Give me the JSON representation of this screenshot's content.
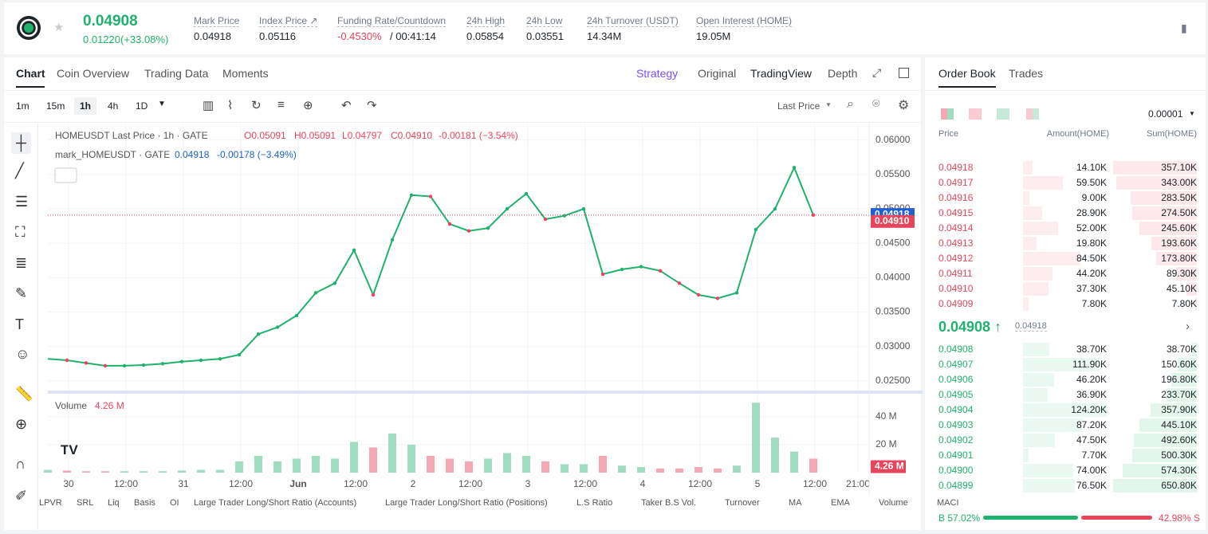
{
  "header": {
    "price": "0.04908",
    "change": "0.01220(+33.08%)",
    "stats": [
      {
        "label": "Mark Price",
        "value": "0.04918"
      },
      {
        "label": "Index Price ↗",
        "value": "0.05116"
      },
      {
        "label": "Funding Rate/Countdown",
        "value": "-0.4530%",
        "extra": "/ 00:41:14"
      },
      {
        "label": "24h High",
        "value": "0.05854"
      },
      {
        "label": "24h Low",
        "value": "0.03551"
      },
      {
        "label": "24h Turnover (USDT)",
        "value": "14.34M"
      },
      {
        "label": "Open Interest (HOME)",
        "value": "19.05M"
      }
    ]
  },
  "chart_tabs": [
    "Chart",
    "Coin Overview",
    "Trading Data",
    "Moments"
  ],
  "chart_views": [
    "Strategy",
    "Original",
    "TradingView",
    "Depth"
  ],
  "intervals": [
    "1m",
    "15m",
    "1h",
    "4h",
    "1D"
  ],
  "price_source": "Last Price",
  "indicators": [
    "LPVR",
    "SRL",
    "Liq",
    "Basis",
    "OI",
    "Large Trader Long/Short Ratio (Accounts)",
    "Large Trader Long/Short Ratio (Positions)",
    "L.S Ratio",
    "Taker B.S Vol.",
    "Turnover",
    "MA",
    "EMA",
    "Volume",
    "MACI"
  ],
  "chart_data": {
    "type": "line",
    "title": "HOMEUSDT Last Price · 1h · GATE",
    "ohlc": [
      "O0.05091",
      "H0.05091",
      "L0.04797",
      "C0.04910",
      "-0.00181 (−3.54%)"
    ],
    "mark_title": "mark_HOMEUSDT · GATE",
    "mark_values": [
      "0.04918",
      "-0.00178 (−3.49%)"
    ],
    "xticks": [
      "30",
      "12:00",
      "31",
      "12:00",
      "Jun",
      "12:00",
      "2",
      "12:00",
      "3",
      "12:00",
      "4",
      "12:00",
      "5",
      "12:00",
      "21:00"
    ],
    "series": [
      {
        "name": "Last Price",
        "color": "#20b26c",
        "values": [
          0.0282,
          0.028,
          0.0276,
          0.0272,
          0.0272,
          0.0273,
          0.0275,
          0.0278,
          0.028,
          0.0282,
          0.0288,
          0.0318,
          0.0328,
          0.0345,
          0.0378,
          0.0392,
          0.044,
          0.0375,
          0.0455,
          0.052,
          0.0518,
          0.0478,
          0.0468,
          0.0472,
          0.05,
          0.0522,
          0.0485,
          0.049,
          0.05,
          0.0405,
          0.0412,
          0.0416,
          0.041,
          0.0392,
          0.0375,
          0.037,
          0.0378,
          0.047,
          0.05,
          0.056,
          0.0491
        ]
      }
    ],
    "ylim": [
      0.0236,
      0.0624
    ],
    "yticks": [
      {
        "value": 0.025,
        "label": "0.02500"
      },
      {
        "value": 0.03,
        "label": "0.03000"
      },
      {
        "value": 0.035,
        "label": "0.03500"
      },
      {
        "value": 0.04,
        "label": "0.04000"
      },
      {
        "value": 0.045,
        "label": "0.04500"
      },
      {
        "value": 0.05,
        "label": "0.05000"
      },
      {
        "value": 0.055,
        "label": "0.05500"
      },
      {
        "value": 0.06,
        "label": "0.06000"
      }
    ],
    "mark_marker": {
      "value": 0.04918,
      "label": "0.04918"
    },
    "last_marker": {
      "value": 0.0491,
      "label": "0.04910"
    },
    "volume": {
      "title": "Volume",
      "values": [
        2,
        1.5,
        1,
        1,
        1,
        1,
        1,
        1.5,
        2,
        2,
        8,
        12,
        8,
        10,
        12,
        10,
        22,
        18,
        28,
        20,
        12,
        10,
        8,
        10,
        14,
        12,
        8,
        6,
        6,
        12,
        5,
        4,
        3,
        3,
        4,
        3,
        5,
        50,
        25,
        15,
        10
      ],
      "ylim": [
        0,
        53
      ],
      "yticks": [
        {
          "value": 20,
          "label": "20 M"
        },
        {
          "value": 40,
          "label": "40 M"
        }
      ],
      "marker": {
        "value": 4.26,
        "label": "4.26 M"
      }
    }
  },
  "order_book": {
    "tabs": [
      "Order Book",
      "Trades"
    ],
    "precision": "0.00001",
    "columns": [
      "Price",
      "Amount(HOME)",
      "Sum(HOME)"
    ],
    "asks": [
      [
        "0.04918",
        "14.10K",
        "357.10K"
      ],
      [
        "0.04917",
        "59.50K",
        "343.00K"
      ],
      [
        "0.04916",
        "9.00K",
        "283.50K"
      ],
      [
        "0.04915",
        "28.90K",
        "274.50K"
      ],
      [
        "0.04914",
        "52.00K",
        "245.60K"
      ],
      [
        "0.04913",
        "19.80K",
        "193.60K"
      ],
      [
        "0.04912",
        "84.50K",
        "173.80K"
      ],
      [
        "0.04911",
        "44.20K",
        "89.30K"
      ],
      [
        "0.04910",
        "37.30K",
        "45.10K"
      ],
      [
        "0.04909",
        "7.80K",
        "7.80K"
      ]
    ],
    "mid_price": "0.04908 ↑",
    "mid_mark": "0.04918",
    "bids": [
      [
        "0.04908",
        "38.70K",
        "38.70K"
      ],
      [
        "0.04907",
        "111.90K",
        "150.60K"
      ],
      [
        "0.04906",
        "46.20K",
        "196.80K"
      ],
      [
        "0.04905",
        "36.90K",
        "233.70K"
      ],
      [
        "0.04904",
        "124.20K",
        "357.90K"
      ],
      [
        "0.04903",
        "87.20K",
        "445.10K"
      ],
      [
        "0.04902",
        "47.50K",
        "492.60K"
      ],
      [
        "0.04901",
        "7.70K",
        "500.30K"
      ],
      [
        "0.04900",
        "74.00K",
        "574.30K"
      ],
      [
        "0.04899",
        "76.50K",
        "650.80K"
      ]
    ],
    "buy": {
      "value": 57.02,
      "label": "B 57.02%"
    },
    "sell": {
      "value": 42.98,
      "label": "42.98% S"
    }
  }
}
